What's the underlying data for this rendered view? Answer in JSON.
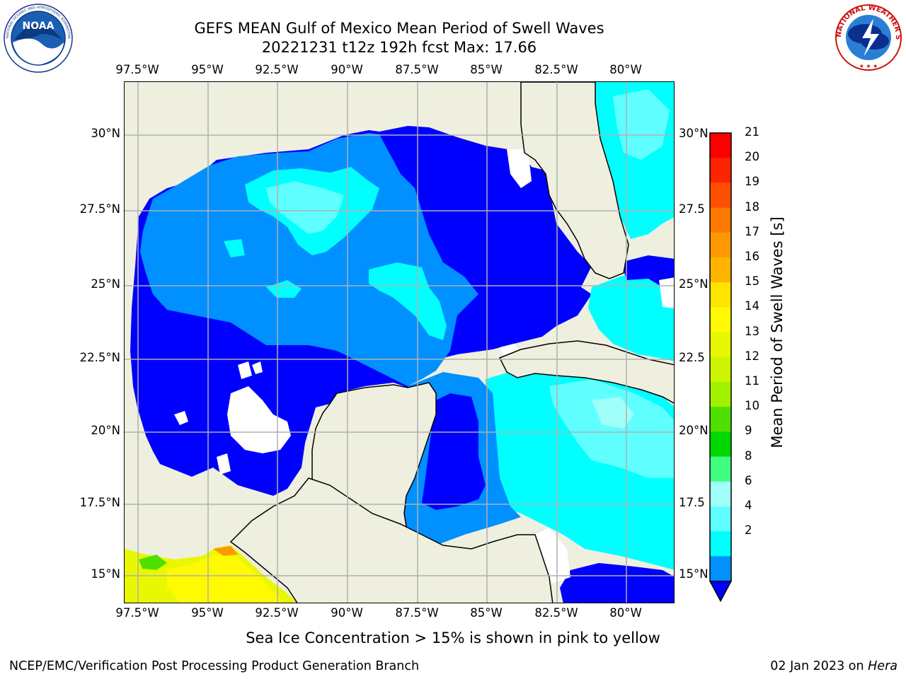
{
  "title": {
    "line1": "GEFS MEAN Gulf of Mexico Mean Period of Swell Waves",
    "line2": "20221231 t12z 192h fcst   Max: 17.66"
  },
  "logos": {
    "left": "noaa-logo",
    "left_text": "NOAA",
    "left_ring_text": "NATIONAL OCEANIC AND ATMOSPHERIC ADMINISTRATION · U.S. DEPARTMENT OF COMMERCE",
    "right": "nws-logo",
    "right_ring_text": "NATIONAL WEATHER SERVICE"
  },
  "map": {
    "lon_ticks": [
      "97.5°W",
      "95°W",
      "92.5°W",
      "90°W",
      "87.5°W",
      "85°W",
      "82.5°W",
      "80°W"
    ],
    "lat_ticks_left": [
      "30°N",
      "27.5°N",
      "25°N",
      "22.5°N",
      "20°N",
      "17.5°N",
      "15°N"
    ],
    "lat_ticks_right": [
      "30°N",
      "27.5",
      "25°N",
      "22.5",
      "20°N",
      "17.5",
      "15°N"
    ],
    "lon_range": [
      -98,
      -78
    ],
    "lat_range": [
      14,
      32
    ],
    "land_color": "#efefdf",
    "grid": true,
    "grid_color": "#b0b0b0"
  },
  "colorbar": {
    "label": "Mean Period of Swell Waves [s]",
    "ticks": [
      "21",
      "20",
      "19",
      "18",
      "17",
      "16",
      "15",
      "14",
      "13",
      "12",
      "11",
      "10",
      "9",
      "8",
      "6",
      "4",
      "2"
    ],
    "colors": [
      "#ff0000",
      "#ff2400",
      "#ff5000",
      "#ff7800",
      "#ff9800",
      "#ffb400",
      "#ffe400",
      "#fffa00",
      "#e8f800",
      "#ccf400",
      "#a0f000",
      "#50e000",
      "#00d800",
      "#40ff80",
      "#a0fff8",
      "#60ffff",
      "#00ffff",
      "#0090ff",
      "#0000ff"
    ],
    "extend": "min"
  },
  "ice_note": "Sea Ice Concentration > 15% is shown in pink to yellow",
  "footer": {
    "left": "NCEP/EMC/Verification Post Processing Product Generation Branch",
    "right_date": "02 Jan 2023 on ",
    "right_host": "Hera"
  }
}
